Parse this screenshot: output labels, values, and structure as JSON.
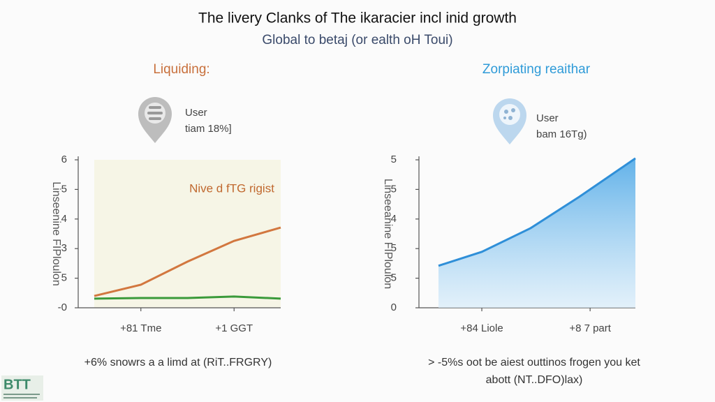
{
  "title": "The livery Clanks of The ikaracier incl inid growth",
  "subtitle": "Global to betaj (or ealth oH Toui)",
  "logo": "BTT",
  "chart_data": [
    {
      "type": "line",
      "heading": "Liquiding:",
      "pin_title": "User",
      "pin_text": "tiam 18%]",
      "annotation": "Nive d fTG rigist",
      "ylabel": "Linseenine FIPloulon",
      "caption": "+6% snowrs a a limd at (RiT..FRGRY)",
      "background": "#f6f5e6",
      "xlim": [
        0,
        4
      ],
      "xticks": [
        {
          "value": 1,
          "label": "+81 Tme"
        },
        {
          "value": 3,
          "label": "+1 GGT"
        }
      ],
      "ylim": [
        0,
        5
      ],
      "yticks": [
        {
          "value": 5,
          "label": "6"
        },
        {
          "value": 4,
          "label": "5"
        },
        {
          "value": 3,
          "label": "4"
        },
        {
          "value": 2,
          "label": "3"
        },
        {
          "value": 1,
          "label": "5"
        },
        {
          "value": 0,
          "label": "-0"
        }
      ],
      "x": [
        0,
        1,
        2,
        3,
        4
      ],
      "series": [
        {
          "color": "#d2773f",
          "values": [
            0.4,
            0.78,
            1.56,
            2.26,
            2.71
          ]
        },
        {
          "color": "#3a9a3a",
          "values": [
            0.31,
            0.33,
            0.33,
            0.38,
            0.31
          ]
        }
      ]
    },
    {
      "type": "area",
      "heading": "Zorpiating reaithar",
      "pin_title": "User",
      "pin_text": "bam 16Tg)",
      "ylabel": "Linseeanine FIPloulon",
      "caption": [
        "> -5%s oot be aiest outtinos frogen you ket",
        "abott (NT..DFO)lax)"
      ],
      "xlim": [
        0,
        4
      ],
      "xticks": [
        {
          "value": 0.88,
          "label": "+84 Liole"
        },
        {
          "value": 3.08,
          "label": "+8 7 part"
        }
      ],
      "ylim": [
        0,
        5
      ],
      "yticks": [
        {
          "value": 5,
          "label": "5"
        },
        {
          "value": 4,
          "label": "5"
        },
        {
          "value": 3,
          "label": "4"
        },
        {
          "value": 2,
          "label": "5"
        },
        {
          "value": 1,
          "label": "5"
        },
        {
          "value": 0,
          "label": "0"
        }
      ],
      "x": [
        0,
        0.88,
        1.87,
        2.86,
        4
      ],
      "series": [
        {
          "color": "#2f8fd8",
          "values": [
            1.42,
            1.89,
            2.69,
            3.75,
            5.05
          ]
        }
      ]
    }
  ]
}
